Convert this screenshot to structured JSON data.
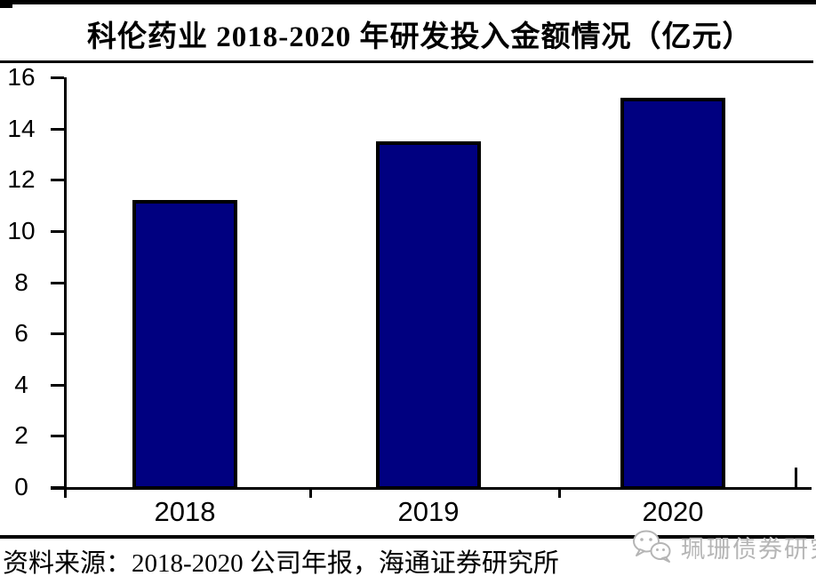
{
  "title": "科伦药业 2018-2020 年研发投入金额情况（亿元）",
  "source_note": "资料来源：2018-2020 公司年报，海通证券研究所",
  "watermark": {
    "label": "珮珊债券研究",
    "icon": "wechat-icon"
  },
  "colors": {
    "bar_fill": "#000080",
    "bar_border": "#000000",
    "axis": "#000000",
    "watermark_gray": "#b5b5b5"
  },
  "chart_data": {
    "type": "bar",
    "title": "科伦药业 2018-2020 年研发投入金额情况（亿元）",
    "categories": [
      "2018",
      "2019",
      "2020"
    ],
    "values": [
      11.2,
      13.5,
      15.2
    ],
    "series_name": "研发投入金额",
    "xlabel": "",
    "ylabel": "亿元",
    "ylim": [
      0,
      16
    ],
    "yticks": [
      0,
      2,
      4,
      6,
      8,
      10,
      12,
      14,
      16
    ],
    "grid": false,
    "legend": "none",
    "bar_color": "#000080"
  }
}
